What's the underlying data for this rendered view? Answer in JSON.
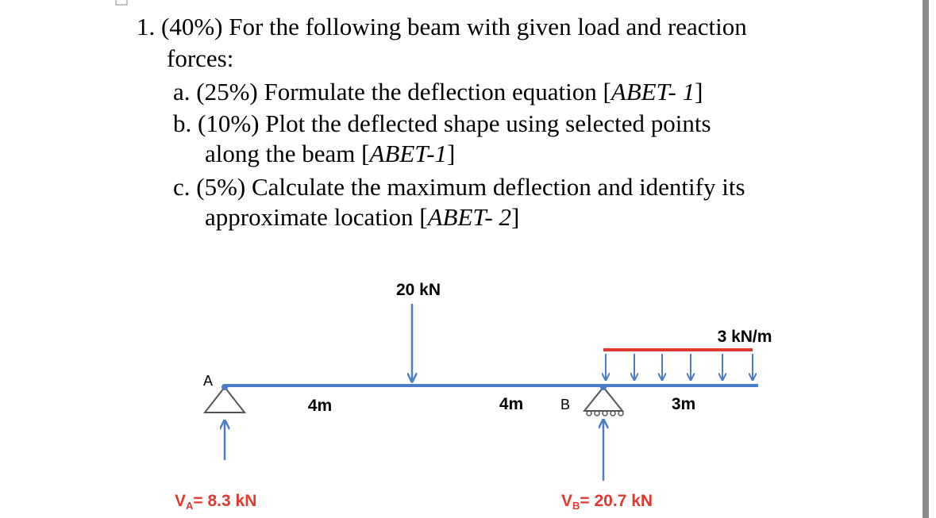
{
  "question": {
    "line1": "1. (40%) For the following beam with given load and reaction",
    "line2": "forces:"
  },
  "parts": [
    {
      "lines": [
        {
          "text": "a. (25%) Formulate the deflection equation [",
          "ref": "ABET- 1",
          "close": "]"
        }
      ]
    },
    {
      "lines": [
        {
          "text": "b. (10%) Plot the deflected shape using selected points"
        },
        {
          "text": "along the beam [",
          "ref": "ABET-1",
          "close": "]"
        }
      ]
    },
    {
      "lines": [
        {
          "text": "c. (5%) Calculate the maximum deflection and identify its"
        },
        {
          "text": "approximate location [",
          "ref": "ABET- 2",
          "close": "]"
        }
      ]
    }
  ],
  "diagram": {
    "point_load": "20 kN",
    "distributed_load": "3 kN/m",
    "support_a": "A",
    "support_b": "B",
    "spans": [
      "4m",
      "4m",
      "3m"
    ],
    "reaction_a": {
      "symbol": "V",
      "subscript": "A",
      "text": "= 8.3 kN"
    },
    "reaction_b": {
      "symbol": "V",
      "subscript": "B",
      "text": "= 20.7 kN"
    }
  }
}
